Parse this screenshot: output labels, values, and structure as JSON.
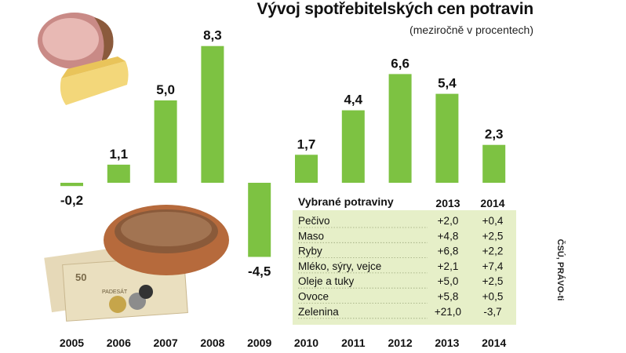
{
  "title": "Vývoj spotřebitelských cen potravin",
  "subtitle": "(meziročně v procentech)",
  "source": "ČSÚ, PRÁVO-ti",
  "colors": {
    "bar": "#7dc242",
    "table_bg": "#e6efc8",
    "text": "#111111"
  },
  "chart_data": {
    "type": "bar",
    "title": "Vývoj spotřebitelských cen potravin",
    "subtitle": "(meziročně v procentech)",
    "categories": [
      "2005",
      "2006",
      "2007",
      "2008",
      "2009",
      "2010",
      "2011",
      "2012",
      "2013",
      "2014"
    ],
    "values": [
      -0.2,
      1.1,
      5.0,
      8.3,
      -4.5,
      1.7,
      4.4,
      6.6,
      5.4,
      2.3
    ],
    "value_labels": [
      "-0,2",
      "1,1",
      "5,0",
      "8,3",
      "-4,5",
      "1,7",
      "4,4",
      "6,6",
      "5,4",
      "2,3"
    ],
    "ylim": [
      -5,
      9
    ],
    "grid": false,
    "xlabel": "",
    "ylabel": ""
  },
  "table": {
    "header": "Vybrané potraviny",
    "columns": [
      "2013",
      "2014"
    ],
    "rows": [
      {
        "label": "Pečivo",
        "v2013": "+2,0",
        "v2014": "+0,4"
      },
      {
        "label": "Maso",
        "v2013": "+4,8",
        "v2014": "+2,5"
      },
      {
        "label": "Ryby",
        "v2013": "+6,8",
        "v2014": "+2,2"
      },
      {
        "label": "Mléko, sýry, vejce",
        "v2013": "+2,1",
        "v2014": "+7,4"
      },
      {
        "label": "Oleje a tuky",
        "v2013": "+5,0",
        "v2014": "+2,5"
      },
      {
        "label": "Ovoce",
        "v2013": "+5,8",
        "v2014": "+0,5"
      },
      {
        "label": "Zelenina",
        "v2013": "+21,0",
        "v2014": "-3,7"
      }
    ]
  },
  "illustrations": {
    "top": "ham-and-cheese-illustration",
    "bottom": "bread-and-money-illustration",
    "banknote_value": "50",
    "banknote_text": "PADESÁT"
  }
}
